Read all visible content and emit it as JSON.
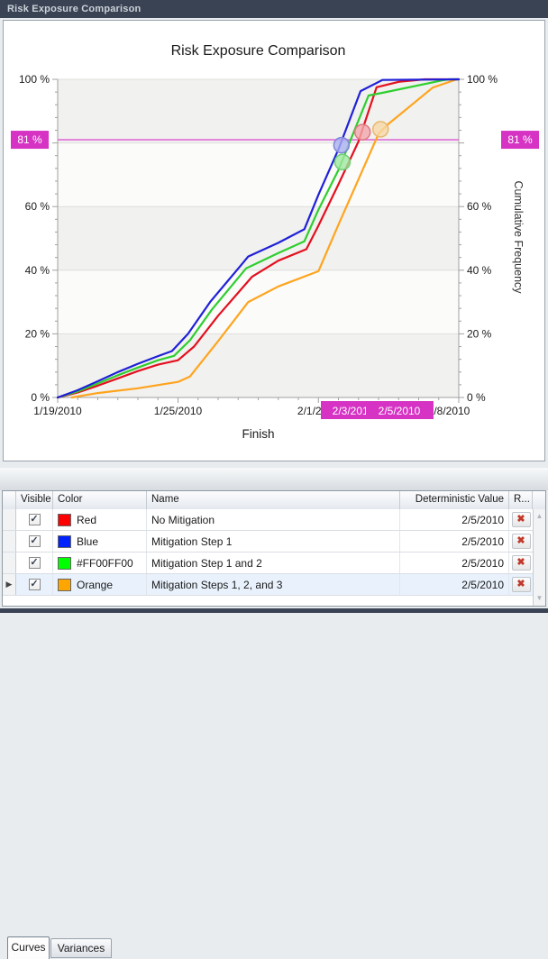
{
  "window": {
    "title": "Risk Exposure Comparison"
  },
  "chart": {
    "title": "Risk Exposure Comparison",
    "x_axis": {
      "label": "Finish"
    },
    "y_axis_right_label": "Cumulative Frequency"
  },
  "chart_data": {
    "type": "line",
    "title": "Risk Exposure Comparison",
    "xlabel": "Finish",
    "ylabel": "Cumulative Frequency",
    "xlim": [
      "1/19/2010",
      "2/8/2010"
    ],
    "ylim": [
      0,
      100
    ],
    "x_unit": "days since 1/19/2010",
    "x_major_ticks": [
      {
        "day": 0,
        "label": "1/19/2010"
      },
      {
        "day": 6,
        "label": "1/25/2010"
      },
      {
        "day": 13,
        "label": "2/1/2010"
      },
      {
        "day": 20,
        "label": "2/8/2010"
      }
    ],
    "y_major_ticks": [
      {
        "pct": 0,
        "label": "0 %"
      },
      {
        "pct": 20,
        "label": "20 %"
      },
      {
        "pct": 40,
        "label": "40 %"
      },
      {
        "pct": 60,
        "label": "60 %"
      },
      {
        "pct": 80,
        "label": ""
      },
      {
        "pct": 100,
        "label": "100 %"
      }
    ],
    "y_minor_step_pct": 4,
    "grid": true,
    "band_fill": "#f1f1ef",
    "plot_fill": "#fbfbfa",
    "gridline_color": "#dedfdb",
    "axis_color": "#a0a0a0",
    "crosshair": {
      "pct": 81,
      "pct_label": "81 %",
      "line_color": "#e06cd9",
      "box_color": "#d633c4",
      "date_labels": [
        {
          "day": 15,
          "label": "2/3/2010"
        },
        {
          "day": 17,
          "label": "2/5/2010"
        }
      ]
    },
    "series": [
      {
        "name": "Mitigation Steps 1, 2, and 3",
        "color": "#ffa41e",
        "points": [
          [
            0.7,
            0
          ],
          [
            2,
            1.4
          ],
          [
            4,
            2.9
          ],
          [
            6,
            4.9
          ],
          [
            6.6,
            6.6
          ],
          [
            8,
            17.7
          ],
          [
            9.5,
            30
          ],
          [
            11,
            34.9
          ],
          [
            13,
            39.7
          ],
          [
            14,
            54.3
          ],
          [
            15,
            68.6
          ],
          [
            16,
            82.9
          ],
          [
            16.5,
            86
          ],
          [
            18.7,
            97.4
          ],
          [
            19.9,
            100
          ],
          [
            20,
            100
          ]
        ]
      },
      {
        "name": "No Mitigation",
        "color": "#e3101f",
        "points": [
          [
            0,
            0
          ],
          [
            1,
            1.6
          ],
          [
            2,
            3.7
          ],
          [
            3,
            6
          ],
          [
            4,
            8.3
          ],
          [
            5,
            10.3
          ],
          [
            6,
            11.7
          ],
          [
            6.8,
            16
          ],
          [
            8,
            25.7
          ],
          [
            9.7,
            38
          ],
          [
            11,
            43
          ],
          [
            12.4,
            46.6
          ],
          [
            13,
            54
          ],
          [
            14,
            67
          ],
          [
            15,
            80.5
          ],
          [
            15.9,
            97.5
          ],
          [
            17,
            99.2
          ],
          [
            18.3,
            100
          ],
          [
            20,
            100
          ]
        ]
      },
      {
        "name": "Mitigation Step 1 and 2",
        "color": "#2fce2f",
        "points": [
          [
            0,
            0
          ],
          [
            1,
            1.9
          ],
          [
            2,
            4.4
          ],
          [
            3,
            7
          ],
          [
            4,
            9.4
          ],
          [
            5,
            11.7
          ],
          [
            5.8,
            13.1
          ],
          [
            6.6,
            18
          ],
          [
            7.7,
            27.7
          ],
          [
            9.4,
            40.6
          ],
          [
            11,
            45.4
          ],
          [
            12.3,
            49.1
          ],
          [
            13,
            59
          ],
          [
            14,
            71.5
          ],
          [
            15.5,
            94.9
          ],
          [
            16.3,
            95.9
          ],
          [
            19.2,
            99.7
          ],
          [
            19.5,
            100
          ],
          [
            20,
            100
          ]
        ]
      },
      {
        "name": "Mitigation Step 1",
        "color": "#2020d8",
        "points": [
          [
            0,
            0
          ],
          [
            1,
            2.3
          ],
          [
            2,
            5.1
          ],
          [
            3,
            8
          ],
          [
            4,
            10.6
          ],
          [
            5,
            13
          ],
          [
            5.7,
            14.6
          ],
          [
            6.5,
            20
          ],
          [
            7.6,
            30
          ],
          [
            9.2,
            42
          ],
          [
            9.5,
            44.3
          ],
          [
            11,
            48.6
          ],
          [
            12.3,
            52.9
          ],
          [
            13,
            63.7
          ],
          [
            14,
            78
          ],
          [
            15.1,
            96.3
          ],
          [
            16.2,
            99.8
          ],
          [
            20,
            100
          ]
        ]
      }
    ],
    "markers": [
      {
        "series": "Mitigation Step 1",
        "day": 14.15,
        "pct": 79.3,
        "fill": "#aab0f0",
        "stroke": "#7e86d8"
      },
      {
        "series": "Mitigation Step 1 and 2",
        "day": 14.2,
        "pct": 74,
        "fill": "#9fe8a0",
        "stroke": "#6fcf75"
      },
      {
        "series": "No Mitigation",
        "day": 15.2,
        "pct": 83.4,
        "fill": "#f2a8ac",
        "stroke": "#e07880"
      },
      {
        "series": "Mitigation Steps 1, 2, and 3",
        "day": 16.1,
        "pct": 84.3,
        "fill": "#f8d8a8",
        "stroke": "#e8b96e"
      }
    ]
  },
  "tabs": [
    {
      "label": "Curves",
      "active": true
    },
    {
      "label": "Variances",
      "active": false
    }
  ],
  "table": {
    "columns": [
      "",
      "Visible",
      "Color",
      "Name",
      "Deterministic Value",
      "R..."
    ],
    "rows": [
      {
        "visible": true,
        "color_name": "Red",
        "color": "#ff0000",
        "name": "No Mitigation",
        "deterministic_value": "2/5/2010",
        "selected": false
      },
      {
        "visible": true,
        "color_name": "Blue",
        "color": "#0022ff",
        "name": "Mitigation Step 1",
        "deterministic_value": "2/5/2010",
        "selected": false
      },
      {
        "visible": true,
        "color_name": "#FF00FF00",
        "color": "#00ff00",
        "name": "Mitigation Step 1 and 2",
        "deterministic_value": "2/5/2010",
        "selected": false
      },
      {
        "visible": true,
        "color_name": "Orange",
        "color": "#ffa500",
        "name": "Mitigation Steps 1, 2, and 3",
        "deterministic_value": "2/5/2010",
        "selected": true
      }
    ],
    "scrollbar": {
      "up_icon": "▲",
      "down_icon": "▼"
    },
    "checkbox_glyph": "✓",
    "delete_glyph": "✖",
    "current_row_glyph": "▶"
  }
}
